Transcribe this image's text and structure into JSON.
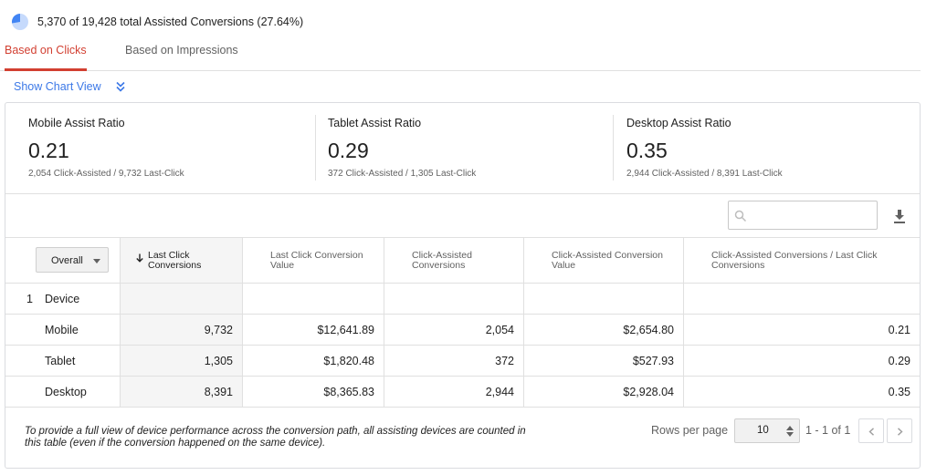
{
  "summary": {
    "text": "5,370 of 19,428 total Assisted Conversions (27.64%)",
    "pie_fraction": 0.2764,
    "pie_color": "#4285f4"
  },
  "tabs": [
    {
      "label": "Based on Clicks",
      "active": true
    },
    {
      "label": "Based on Impressions",
      "active": false
    }
  ],
  "chart_view": {
    "label": "Show Chart View",
    "icon": "double-chevron-down-icon"
  },
  "scorecards": [
    {
      "title": "Mobile Assist Ratio",
      "value": "0.21",
      "sub": "2,054 Click-Assisted / 9,732 Last-Click"
    },
    {
      "title": "Tablet Assist Ratio",
      "value": "0.29",
      "sub": "372 Click-Assisted / 1,305 Last-Click"
    },
    {
      "title": "Desktop Assist Ratio",
      "value": "0.35",
      "sub": "2,944 Click-Assisted / 8,391 Last-Click"
    }
  ],
  "toolbar": {
    "search_value": "",
    "search_icon": "search-icon",
    "download_icon": "download-icon"
  },
  "table": {
    "dimension_selector": "Overall",
    "columns": [
      "Last Click Conversions",
      "Last Click Conversion Value",
      "Click-Assisted Conversions",
      "Click-Assisted Conversion Value",
      "Click-Assisted Conversions / Last Click Conversions"
    ],
    "group": {
      "index": "1",
      "label": "Device"
    },
    "rows": [
      {
        "label": "Mobile",
        "values": [
          "9,732",
          "$12,641.89",
          "2,054",
          "$2,654.80",
          "0.21"
        ]
      },
      {
        "label": "Tablet",
        "values": [
          "1,305",
          "$1,820.48",
          "372",
          "$527.93",
          "0.29"
        ]
      },
      {
        "label": "Desktop",
        "values": [
          "8,391",
          "$8,365.83",
          "2,944",
          "$2,928.04",
          "0.35"
        ]
      }
    ]
  },
  "footer": {
    "note": "To provide a full view of device performance across the conversion path, all assisting devices are counted in this table (even if the conversion happened on the same device).",
    "rows_per_page_label": "Rows per page",
    "rows_per_page_value": "10",
    "page_range": "1 - 1 of 1"
  },
  "colors": {
    "accent": "#d23f31",
    "link": "#3b78e7"
  }
}
